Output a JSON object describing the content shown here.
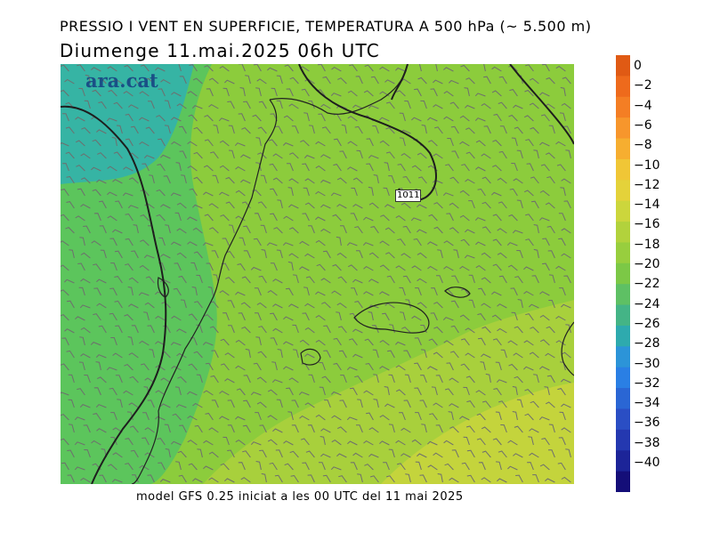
{
  "header": {
    "title": "PRESSIO I VENT EN SUPERFICIE, TEMPERATURA A 500 hPa (~ 5.500 m)",
    "subtitle": "Diumenge  11.mai.2025 06h UTC"
  },
  "footer": {
    "model_text": "model GFS 0.25 iniciat a les 00 UTC del 11 mai 2025"
  },
  "logo": {
    "text": "ara.cat"
  },
  "map": {
    "isobar_label": "1011",
    "temperature_zones": [
      {
        "name": "cold-corner",
        "value": -24,
        "color": "#36b4a4"
      },
      {
        "name": "band-22",
        "value": -22,
        "color": "#5cc55c"
      },
      {
        "name": "main",
        "value": -20,
        "color": "#8ccc3c"
      },
      {
        "name": "warm-south",
        "value": -18,
        "color": "#a8d03c"
      },
      {
        "name": "warm-southeast",
        "value": -16,
        "color": "#c4d43c"
      }
    ]
  },
  "colorbar": {
    "levels": [
      {
        "label": "0",
        "color": "#e05a14"
      },
      {
        "label": "−2",
        "color": "#ee6a1c"
      },
      {
        "label": "−4",
        "color": "#f47e24"
      },
      {
        "label": "−6",
        "color": "#f7962c"
      },
      {
        "label": "−8",
        "color": "#f6ae30"
      },
      {
        "label": "−10",
        "color": "#f0c636"
      },
      {
        "label": "−12",
        "color": "#e4d23a"
      },
      {
        "label": "−14",
        "color": "#ccd63c"
      },
      {
        "label": "−16",
        "color": "#b2d23c"
      },
      {
        "label": "−18",
        "color": "#98ce3e"
      },
      {
        "label": "−20",
        "color": "#7cc846"
      },
      {
        "label": "−22",
        "color": "#5ec064"
      },
      {
        "label": "−24",
        "color": "#44b486"
      },
      {
        "label": "−26",
        "color": "#2eaaae"
      },
      {
        "label": "−28",
        "color": "#2c94d8"
      },
      {
        "label": "−30",
        "color": "#2a7fe4"
      },
      {
        "label": "−32",
        "color": "#2a66d4"
      },
      {
        "label": "−34",
        "color": "#2a4ec4"
      },
      {
        "label": "−36",
        "color": "#2438b0"
      },
      {
        "label": "−38",
        "color": "#1c2498"
      },
      {
        "label": "−40",
        "color": "#140e78"
      }
    ]
  }
}
